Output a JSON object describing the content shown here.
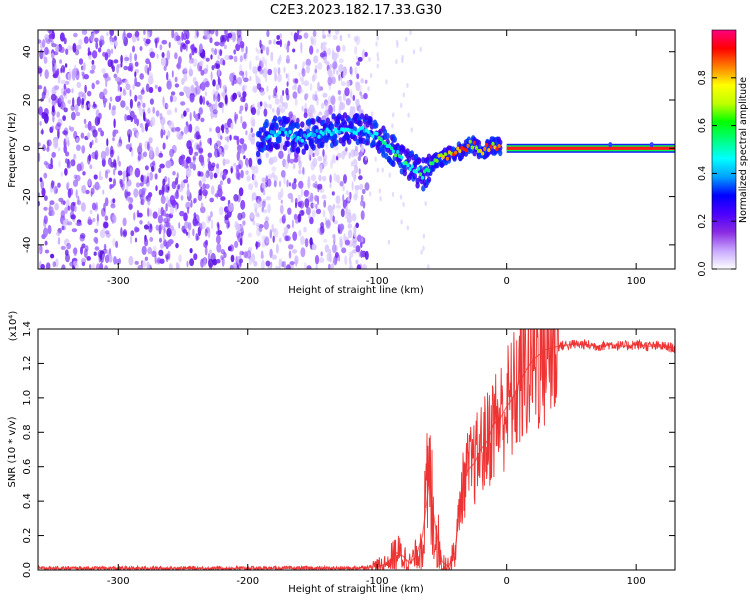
{
  "title": "C2E3.2023.182.17.33.G30",
  "chart_data": [
    {
      "type": "heatmap",
      "xlabel": "Height of straight line (km)",
      "ylabel": "Frequency (Hz)",
      "xlim": [
        -362,
        130
      ],
      "ylim": [
        -50,
        49
      ],
      "x_ticks": [
        -300,
        -200,
        -100,
        0,
        100
      ],
      "y_ticks": [
        -40,
        -20,
        0,
        20,
        40
      ],
      "colorbar": {
        "label": "Normalized spectral amplitude",
        "range": [
          0.0,
          1.0
        ],
        "ticks": [
          "0.0",
          "0.2",
          "0.4",
          "0.6",
          "0.8"
        ],
        "tick_values": [
          0.0,
          0.2,
          0.4,
          0.6,
          0.8
        ],
        "colors": [
          "#ffffff",
          "#c8a8ff",
          "#8a2be2",
          "#4b00ff",
          "#0000ff",
          "#00a0ff",
          "#00ffff",
          "#00ff80",
          "#00ff00",
          "#c0ff00",
          "#ffff00",
          "#ff8000",
          "#ff0000",
          "#ff0080"
        ]
      },
      "ridge": [
        {
          "x": -190,
          "y": 5
        },
        {
          "x": -175,
          "y": 7
        },
        {
          "x": -160,
          "y": 4
        },
        {
          "x": -140,
          "y": 7
        },
        {
          "x": -120,
          "y": 8
        },
        {
          "x": -105,
          "y": 7
        },
        {
          "x": -95,
          "y": 3
        },
        {
          "x": -85,
          "y": -2
        },
        {
          "x": -75,
          "y": -7
        },
        {
          "x": -65,
          "y": -11
        },
        {
          "x": -55,
          "y": -5
        },
        {
          "x": -45,
          "y": -3
        },
        {
          "x": -35,
          "y": -1
        },
        {
          "x": -28,
          "y": 2
        },
        {
          "x": -20,
          "y": -1
        },
        {
          "x": -10,
          "y": 1
        },
        {
          "x": 0,
          "y": 0
        },
        {
          "x": 130,
          "y": 0
        }
      ]
    },
    {
      "type": "line",
      "xlabel": "Height of straight line (km)",
      "ylabel": "SNR (10 * v/v)",
      "y_scale_label": "(x10⁴)",
      "xlim": [
        -362,
        130
      ],
      "ylim": [
        0.0,
        1.4
      ],
      "x_ticks": [
        -300,
        -200,
        -100,
        0,
        100
      ],
      "y_ticks": [
        "0.0",
        "0.2",
        "0.4",
        "0.6",
        "0.8",
        "1.0",
        "1.2",
        "1.4"
      ],
      "y_tick_values": [
        0.0,
        0.2,
        0.4,
        0.6,
        0.8,
        1.0,
        1.2,
        1.4
      ],
      "color": "#ee3333",
      "x": [
        -362,
        -300,
        -200,
        -120,
        -100,
        -95,
        -90,
        -85,
        -80,
        -75,
        -70,
        -65,
        -60,
        -55,
        -50,
        -45,
        -40,
        -35,
        -30,
        -25,
        -20,
        -15,
        -10,
        -5,
        0,
        5,
        10,
        20,
        30,
        40,
        50,
        60,
        70,
        80,
        90,
        100,
        110,
        120,
        130
      ],
      "y": [
        0.01,
        0.01,
        0.01,
        0.01,
        0.02,
        0.03,
        0.06,
        0.1,
        0.08,
        0.04,
        0.08,
        0.2,
        0.5,
        0.25,
        0.05,
        0.02,
        0.1,
        0.45,
        0.58,
        0.62,
        0.7,
        0.75,
        0.85,
        0.88,
        0.95,
        1.0,
        1.1,
        1.22,
        1.28,
        1.3,
        1.31,
        1.31,
        1.3,
        1.31,
        1.3,
        1.31,
        1.3,
        1.3,
        1.29
      ]
    }
  ]
}
